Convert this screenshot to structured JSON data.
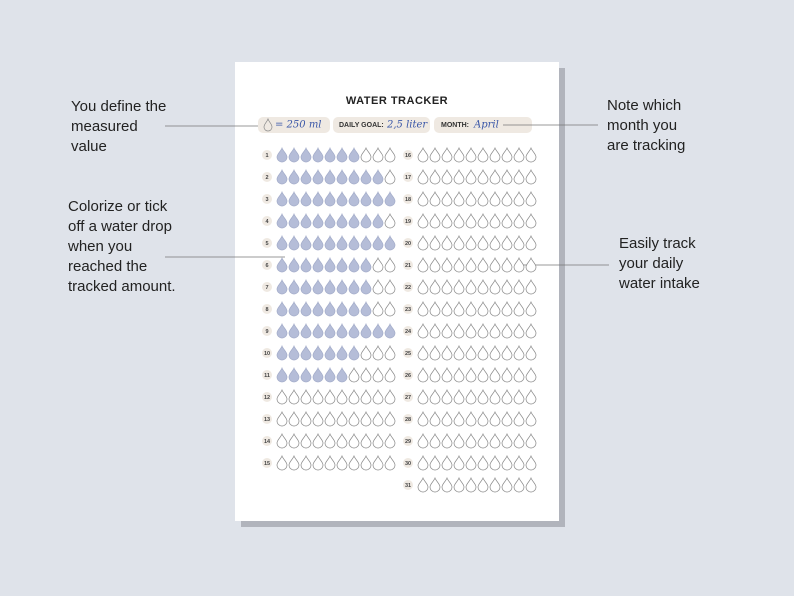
{
  "page": {
    "title": "WATER TRACKER",
    "header": {
      "unit": "= 250 ml",
      "goal_label": "DAILY GOAL:",
      "goal_value": "2,5 liter",
      "month_label": "MONTH:",
      "month_value": "April"
    },
    "annotations": [
      {
        "lines": [
          "You define the",
          "measured",
          "value"
        ]
      },
      {
        "lines": [
          "Colorize or tick",
          "off a water drop",
          "when you",
          "reached the",
          "tracked amount."
        ]
      },
      {
        "lines": [
          "Note which",
          "month you",
          "are tracking"
        ]
      },
      {
        "lines": [
          "Easily track",
          "your daily",
          "water intake"
        ]
      }
    ],
    "drops_per_day": 10,
    "days": [
      {
        "label": "1",
        "filled": 7
      },
      {
        "label": "2",
        "filled": 9
      },
      {
        "label": "3",
        "filled": 10
      },
      {
        "label": "4",
        "filled": 9
      },
      {
        "label": "5",
        "filled": 10
      },
      {
        "label": "6",
        "filled": 8
      },
      {
        "label": "7",
        "filled": 8
      },
      {
        "label": "8",
        "filled": 8
      },
      {
        "label": "9",
        "filled": 10
      },
      {
        "label": "10",
        "filled": 7
      },
      {
        "label": "11",
        "filled": 6
      },
      {
        "label": "12",
        "filled": 0
      },
      {
        "label": "13",
        "filled": 0
      },
      {
        "label": "14",
        "filled": 0
      },
      {
        "label": "15",
        "filled": 0
      },
      {
        "label": "16",
        "filled": 0
      },
      {
        "label": "17",
        "filled": 0
      },
      {
        "label": "18",
        "filled": 0
      },
      {
        "label": "19",
        "filled": 0
      },
      {
        "label": "20",
        "filled": 0
      },
      {
        "label": "21",
        "filled": 0
      },
      {
        "label": "22",
        "filled": 0
      },
      {
        "label": "23",
        "filled": 0
      },
      {
        "label": "24",
        "filled": 0
      },
      {
        "label": "25",
        "filled": 0
      },
      {
        "label": "26",
        "filled": 0
      },
      {
        "label": "27",
        "filled": 0
      },
      {
        "label": "28",
        "filled": 0
      },
      {
        "label": "29",
        "filled": 0
      },
      {
        "label": "30",
        "filled": 0
      },
      {
        "label": "31",
        "filled": 0
      }
    ]
  }
}
